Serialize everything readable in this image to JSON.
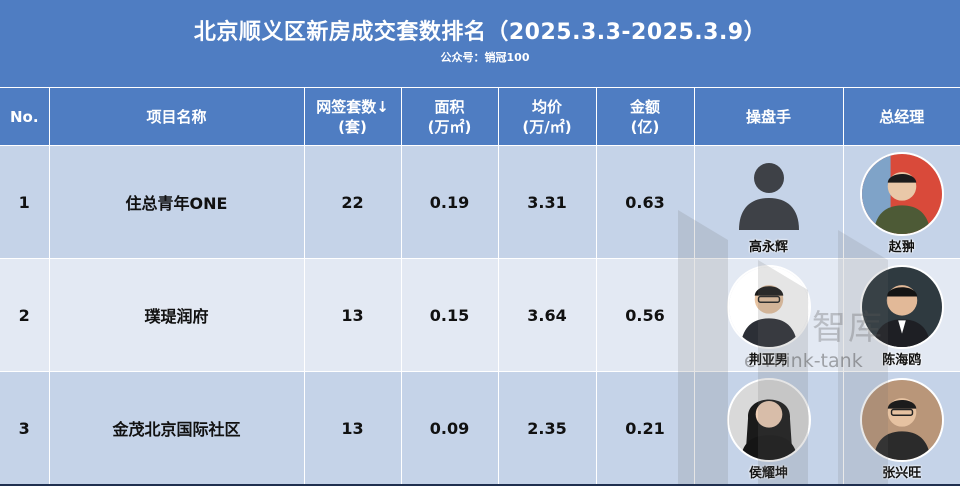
{
  "header": {
    "title": "北京顺义区新房成交套数排名（2025.3.3-2025.3.9）",
    "subtitle": "公众号：销冠100"
  },
  "columns": {
    "no": "No.",
    "project": "项目名称",
    "units_line1": "网签套数↓",
    "units_line2": "(套)",
    "area_line1": "面积",
    "area_line2": "(万㎡)",
    "price_line1": "均价",
    "price_line2": "(万/㎡)",
    "amount_line1": "金额",
    "amount_line2": "(亿)",
    "operator": "操盘手",
    "gm": "总经理"
  },
  "rows": [
    {
      "no": "1",
      "project": "住总青年ONE",
      "units": "22",
      "area": "0.19",
      "price": "3.31",
      "amount": "0.63",
      "operator": "高永辉",
      "gm": "赵翀"
    },
    {
      "no": "2",
      "project": "璞瑅润府",
      "units": "13",
      "area": "0.15",
      "price": "3.64",
      "amount": "0.56",
      "operator": "荆亚男",
      "gm": "陈海鸥"
    },
    {
      "no": "3",
      "project": "金茂北京国际社区",
      "units": "13",
      "area": "0.09",
      "price": "2.35",
      "amount": "0.21",
      "operator": "侯耀坤",
      "gm": "张兴旺"
    }
  ],
  "watermark": {
    "text": "智库",
    "sub": "e Think-tank"
  },
  "colors": {
    "header_bg": "#4f7dc2",
    "row_odd": "#c5d3e8",
    "row_even": "#e3e9f3"
  }
}
